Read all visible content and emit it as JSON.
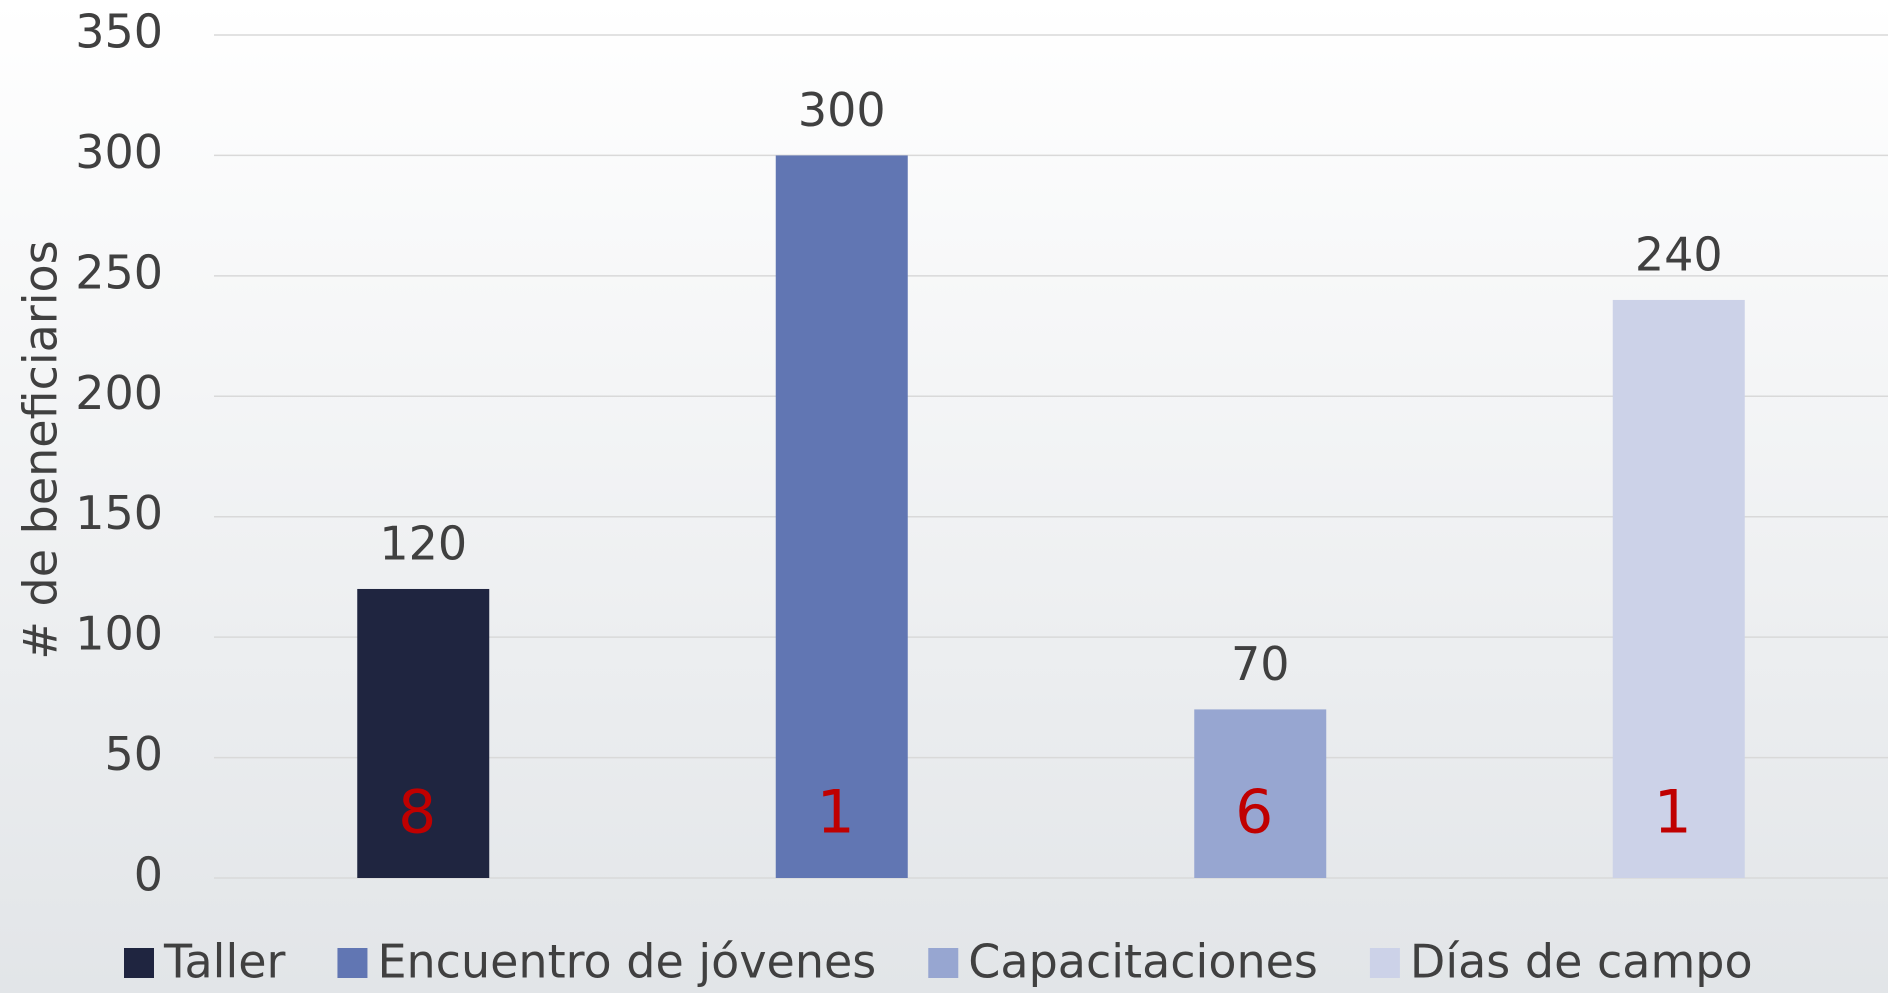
{
  "chart_data": {
    "type": "bar",
    "y_label": "# de beneficiarios",
    "categories": [
      null
    ],
    "series": [
      {
        "name": "Taller",
        "color": "#1f2540",
        "values": [
          120
        ]
      },
      {
        "name": "Encuentro de jóvenes",
        "color": "#6176b3",
        "values": [
          300
        ]
      },
      {
        "name": "Capacitaciones",
        "color": "#97a6d1",
        "values": [
          70
        ]
      },
      {
        "name": "Días de campo",
        "color": "#ccd2e8",
        "values": [
          240
        ]
      }
    ],
    "annotations": [
      "8",
      "1",
      "6",
      "1"
    ],
    "annotation_color": "#c00000",
    "ylim": [
      0,
      350
    ],
    "yticks": [
      0,
      50,
      100,
      150,
      200,
      250,
      300,
      350
    ],
    "grid": true,
    "legend": "bottom"
  }
}
